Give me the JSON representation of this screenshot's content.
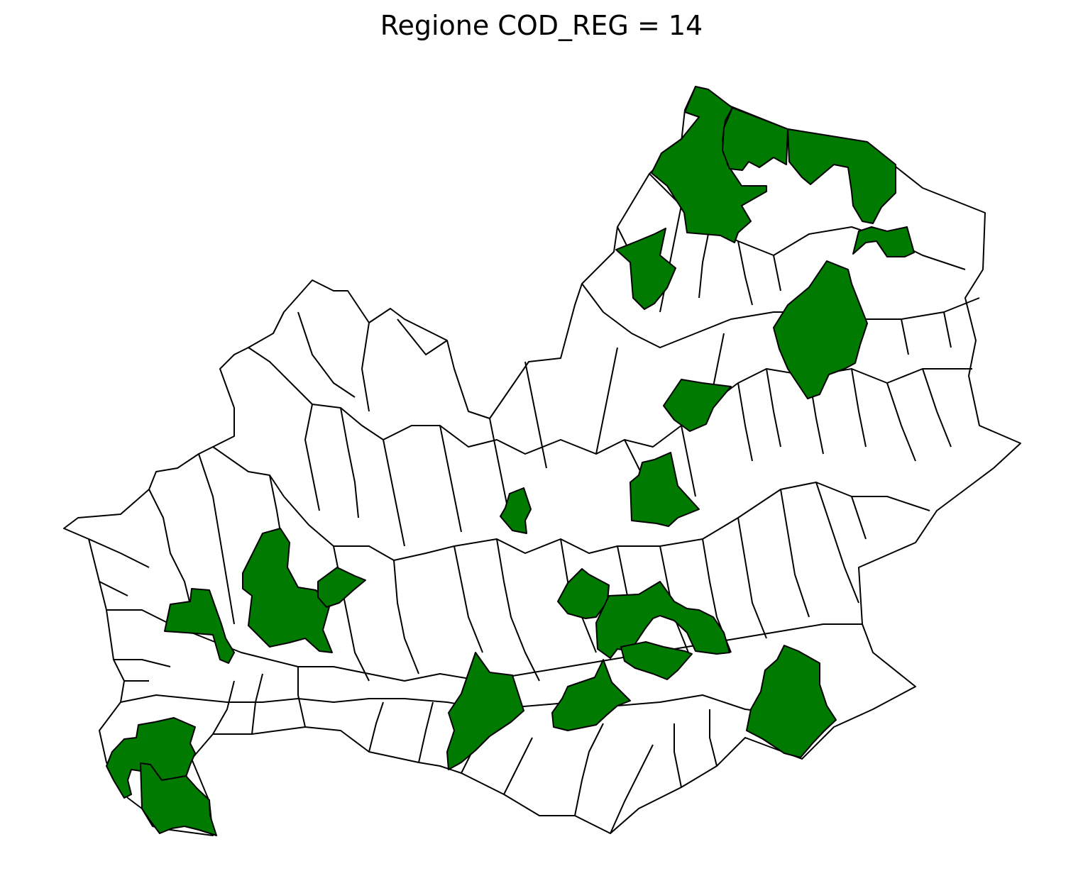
{
  "title": "Regione COD_REG = 14",
  "colors": {
    "background": "#ffffff",
    "highlight": "#007a00",
    "plain": "#ffffff",
    "border": "#000000"
  },
  "map": {
    "region_code": 14,
    "highlighted_municipalities_count": 26
  }
}
